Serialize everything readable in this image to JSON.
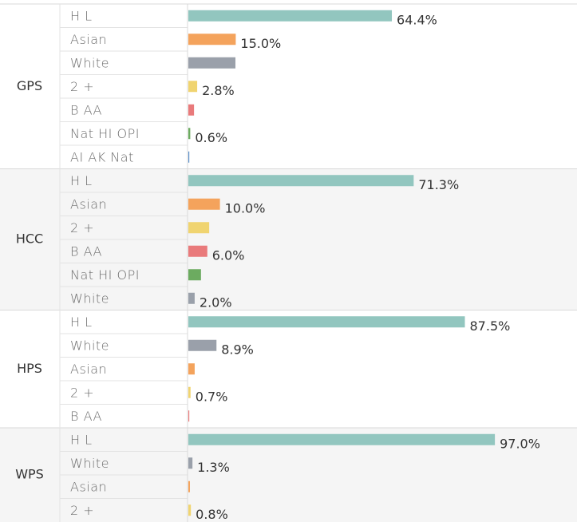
{
  "chart_data": {
    "type": "bar",
    "colors": {
      "H L": "#92c6bf",
      "Asian": "#f4a35c",
      "White": "#9aa0aa",
      "2 +": "#f0d470",
      "B AA": "#e97a7b",
      "Nat HI OPI": "#6cab60",
      "AI AK Nat": "#5b8fc8"
    },
    "groups": [
      {
        "name": "GPS",
        "categories": [
          "H L",
          "Asian",
          "White",
          "2 +",
          "B AA",
          "Nat HI OPI",
          "AI AK Nat"
        ],
        "values": [
          64.4,
          15.0,
          14.9,
          2.8,
          1.8,
          0.6,
          0.3
        ],
        "value_labels": [
          "64.4%",
          "15.0%",
          null,
          "2.8%",
          null,
          "0.6%",
          null
        ]
      },
      {
        "name": "HCC",
        "categories": [
          "H L",
          "Asian",
          "2 +",
          "B AA",
          "Nat HI OPI",
          "White"
        ],
        "values": [
          71.3,
          10.0,
          6.6,
          6.0,
          4.0,
          2.0
        ],
        "value_labels": [
          "71.3%",
          "10.0%",
          null,
          "6.0%",
          null,
          "2.0%"
        ]
      },
      {
        "name": "HPS",
        "categories": [
          "H L",
          "White",
          "Asian",
          "2 +",
          "B AA"
        ],
        "values": [
          87.5,
          8.9,
          2.0,
          0.7,
          0.3
        ],
        "value_labels": [
          "87.5%",
          "8.9%",
          null,
          "0.7%",
          null
        ]
      },
      {
        "name": "WPS",
        "categories": [
          "H L",
          "White",
          "Asian",
          "2 +"
        ],
        "values": [
          97.0,
          1.3,
          0.5,
          0.8
        ],
        "value_labels": [
          "97.0%",
          "1.3%",
          null,
          "0.8%"
        ]
      }
    ]
  }
}
